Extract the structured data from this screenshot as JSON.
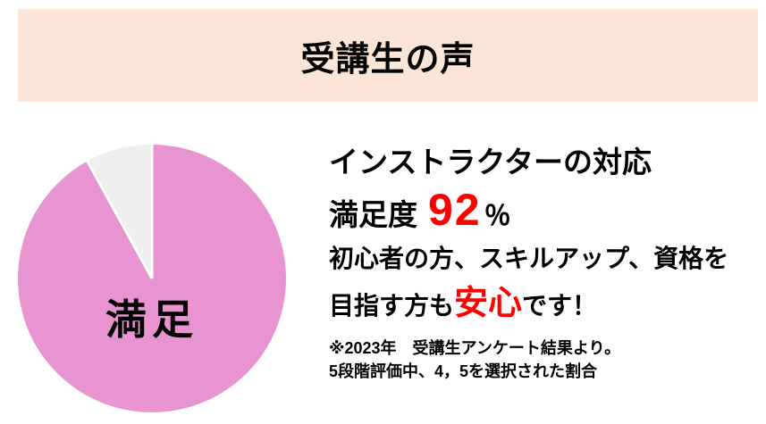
{
  "header": {
    "title": "受講生の声",
    "background": "#FBE5D6",
    "text_color": "#000000"
  },
  "chart_data": {
    "type": "pie",
    "segments": [
      {
        "label": "満足",
        "value": 92,
        "color": "#E894D0"
      },
      {
        "label": "",
        "value": 8,
        "color": "#F0EFEF"
      }
    ],
    "start_angle_deg": 0,
    "direction": "clockwise",
    "separator_color": "#FFFFFF",
    "label_color": "#000000",
    "legend": "none",
    "title": ""
  },
  "details": {
    "heading": "インストラクターの対応",
    "satisfaction": {
      "prefix": "満足度",
      "value": "92",
      "suffix": "％",
      "value_color": "#FF0000"
    },
    "body": {
      "line1": "初心者の方、スキルアップ、資格を",
      "line2_before": "目指す方も",
      "line2_highlight": "安心",
      "line2_after": "です！",
      "highlight_color": "#FF0000"
    },
    "footnote": {
      "line1": "※2023年　受講生アンケート結果より。",
      "line2": "5段階評価中、4，5を選択された割合"
    }
  }
}
